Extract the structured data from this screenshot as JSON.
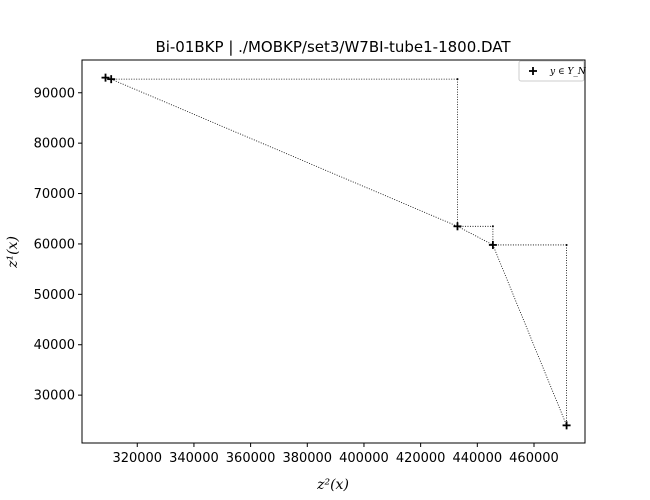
{
  "chart_data": {
    "type": "scatter",
    "title": "Bi-01BKP | ./MOBKP/set3/W7BI-tube1-1800.DAT",
    "xlabel": "z²(x)",
    "ylabel": "z¹(x)",
    "xlim": [
      300500,
      478000
    ],
    "ylim": [
      20500,
      96500
    ],
    "xticks": [
      320000,
      340000,
      360000,
      380000,
      400000,
      420000,
      440000,
      460000
    ],
    "xtick_labels": [
      "320000",
      "340000",
      "360000",
      "380000",
      "400000",
      "420000",
      "440000",
      "460000"
    ],
    "yticks": [
      30000,
      40000,
      50000,
      60000,
      70000,
      80000,
      90000
    ],
    "ytick_labels": [
      "30000",
      "40000",
      "50000",
      "60000",
      "70000",
      "80000",
      "90000"
    ],
    "grid": false,
    "legend_position": "top-right",
    "series": [
      {
        "name": "y ∈ Y_N",
        "marker": "plus",
        "color": "#000000",
        "points": [
          {
            "x": 308800,
            "y": 93000
          },
          {
            "x": 310800,
            "y": 92700
          },
          {
            "x": 433000,
            "y": 63500
          },
          {
            "x": 445500,
            "y": 59800
          },
          {
            "x": 471500,
            "y": 24000
          }
        ]
      }
    ],
    "connector_path": [
      [
        308800,
        93000
      ],
      [
        310800,
        92700
      ],
      [
        433000,
        63500
      ],
      [
        445500,
        59800
      ],
      [
        471500,
        24000
      ]
    ],
    "staircase_path": [
      [
        310800,
        92700
      ],
      [
        433000,
        92700
      ],
      [
        433000,
        63500
      ],
      [
        445500,
        63500
      ],
      [
        445500,
        59800
      ],
      [
        471500,
        59800
      ],
      [
        471500,
        24000
      ]
    ]
  }
}
